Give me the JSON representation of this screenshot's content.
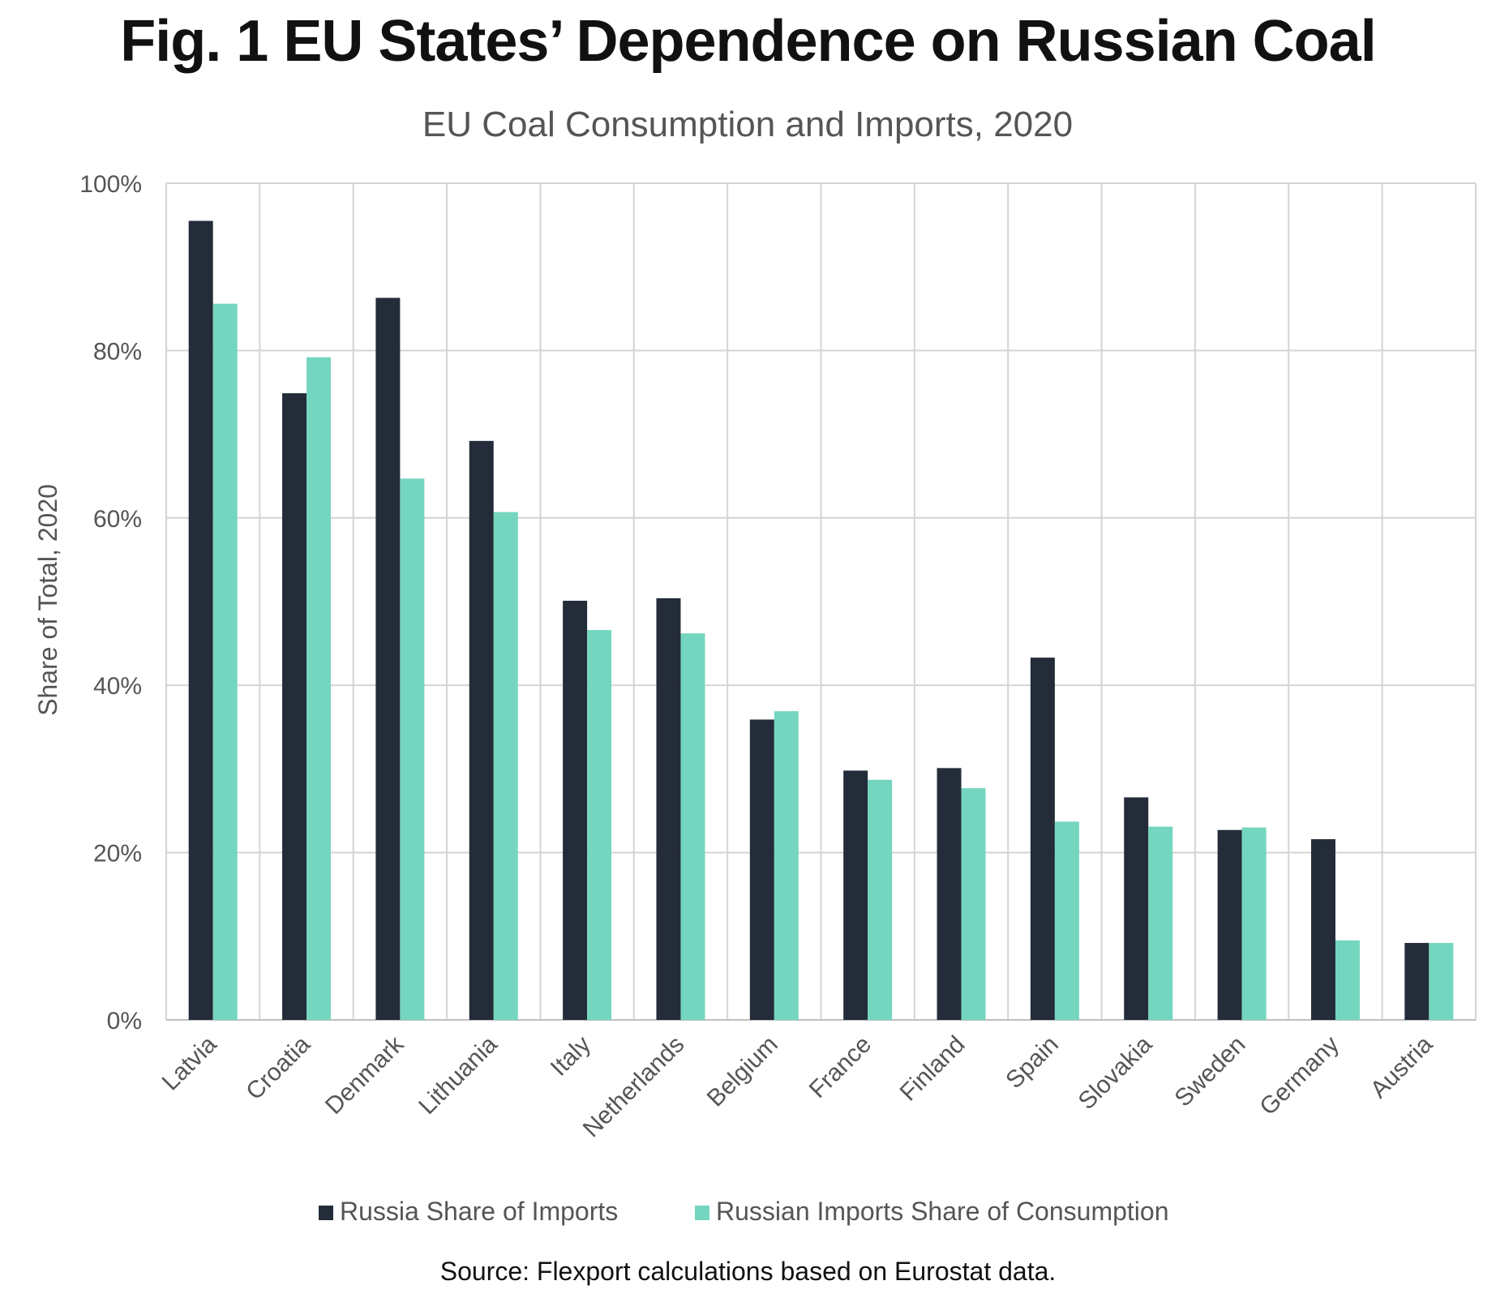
{
  "figure": {
    "title": "Fig. 1 EU States’ Dependence on Russian Coal",
    "source": "Source: Flexport calculations based on Eurostat data."
  },
  "colors": {
    "series1": "#232c38",
    "series2": "#74d6bf",
    "grid": "#d4d4d4",
    "text": "#555555"
  },
  "chart_data": {
    "type": "bar",
    "title": "EU Coal Consumption and Imports, 2020",
    "xlabel": "",
    "ylabel": "Share of Total, 2020",
    "ylim": [
      0,
      100
    ],
    "yticks": [
      0,
      20,
      40,
      60,
      80,
      100
    ],
    "ytick_labels": [
      "0%",
      "20%",
      "40%",
      "60%",
      "80%",
      "100%"
    ],
    "grid": true,
    "legend_position": "bottom",
    "categories": [
      "Latvia",
      "Croatia",
      "Denmark",
      "Lithuania",
      "Italy",
      "Netherlands",
      "Belgium",
      "France",
      "Finland",
      "Spain",
      "Slovakia",
      "Sweden",
      "Germany",
      "Austria"
    ],
    "series": [
      {
        "name": "Russia Share of Imports",
        "values": [
          95.5,
          74.9,
          86.3,
          69.2,
          50.1,
          50.4,
          35.9,
          29.8,
          30.1,
          43.3,
          26.6,
          22.7,
          21.6,
          9.2
        ]
      },
      {
        "name": "Russian Imports Share of Consumption",
        "values": [
          85.6,
          79.2,
          64.7,
          60.7,
          46.6,
          46.2,
          36.9,
          28.7,
          27.7,
          23.7,
          23.1,
          23.0,
          9.5,
          9.2
        ]
      }
    ]
  }
}
